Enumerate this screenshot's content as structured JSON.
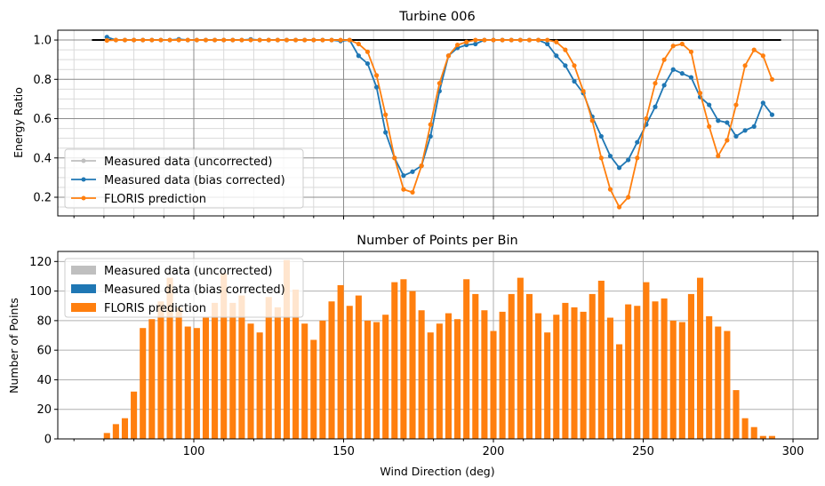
{
  "chart_data": [
    {
      "type": "line",
      "title": "Turbine 006",
      "xlabel": "",
      "ylabel": "Energy Ratio",
      "xlim": [
        54.6,
        308.3
      ],
      "ylim": [
        0.105,
        1.05
      ],
      "yticks": [
        0.2,
        0.4,
        0.6,
        0.8,
        1.0
      ],
      "ytick_labels": [
        "0.2",
        "0.4",
        "0.6",
        "0.8",
        "1.0"
      ],
      "grid": true,
      "legend_position": "lower-left",
      "reference_line": {
        "x": [
          66,
          296
        ],
        "y": 1.0,
        "color": "#000000"
      },
      "x": [
        71,
        74,
        77,
        80,
        83,
        86,
        89,
        92,
        95,
        98,
        101,
        104,
        107,
        110,
        113,
        116,
        119,
        122,
        125,
        128,
        131,
        134,
        137,
        140,
        143,
        146,
        149,
        152,
        155,
        158,
        161,
        164,
        167,
        170,
        173,
        176,
        179,
        182,
        185,
        188,
        191,
        194,
        197,
        200,
        203,
        206,
        209,
        212,
        215,
        218,
        221,
        224,
        227,
        230,
        233,
        236,
        239,
        242,
        245,
        248,
        251,
        254,
        257,
        260,
        263,
        266,
        269,
        272,
        275,
        278,
        281,
        284,
        287,
        290,
        293
      ],
      "series": [
        {
          "name": "Measured data (uncorrected)",
          "color": "#bfbfbf",
          "values": null
        },
        {
          "name": "Measured data (bias corrected)",
          "color": "#1f77b4",
          "values": [
            1.015,
            1.0,
            1.0,
            1.0,
            1.0,
            1.0,
            1.0,
            1.0,
            1.004,
            1.0,
            1.0,
            1.0,
            1.0,
            1.0,
            1.0,
            1.0,
            1.003,
            1.0,
            1.0,
            1.0,
            1.0,
            1.0,
            1.0,
            1.0,
            1.0,
            1.0,
            0.995,
            1.0,
            0.92,
            0.88,
            0.76,
            0.53,
            0.4,
            0.31,
            0.33,
            0.36,
            0.51,
            0.74,
            0.92,
            0.96,
            0.975,
            0.98,
            1.0,
            1.0,
            1.0,
            1.0,
            1.0,
            1.0,
            1.0,
            0.98,
            0.92,
            0.87,
            0.79,
            0.73,
            0.61,
            0.51,
            0.41,
            0.35,
            0.39,
            0.48,
            0.57,
            0.66,
            0.77,
            0.85,
            0.83,
            0.81,
            0.71,
            0.67,
            0.59,
            0.58,
            0.51,
            0.54,
            0.56,
            0.68,
            0.62
          ]
        },
        {
          "name": "FLORIS prediction",
          "color": "#ff7f0e",
          "values": [
            0.998,
            1.0,
            1.0,
            1.0,
            1.0,
            1.0,
            1.0,
            1.0,
            1.0,
            1.0,
            1.0,
            1.0,
            1.0,
            1.0,
            1.0,
            1.0,
            1.0,
            1.0,
            1.0,
            1.0,
            1.0,
            1.0,
            1.0,
            1.0,
            1.0,
            1.0,
            1.0,
            1.0,
            0.98,
            0.94,
            0.82,
            0.62,
            0.4,
            0.24,
            0.225,
            0.36,
            0.57,
            0.78,
            0.92,
            0.975,
            0.99,
            1.0,
            1.0,
            1.0,
            1.0,
            1.0,
            1.0,
            1.0,
            1.0,
            1.0,
            0.99,
            0.95,
            0.87,
            0.74,
            0.59,
            0.4,
            0.24,
            0.15,
            0.2,
            0.4,
            0.6,
            0.78,
            0.9,
            0.97,
            0.98,
            0.94,
            0.73,
            0.56,
            0.41,
            0.49,
            0.67,
            0.87,
            0.95,
            0.92,
            0.8
          ]
        }
      ]
    },
    {
      "type": "bar",
      "title": "Number of Points per Bin",
      "xlabel": "Wind Direction (deg)",
      "ylabel": "Number of Points",
      "xlim": [
        54.6,
        308.3
      ],
      "ylim": [
        0,
        126.8
      ],
      "xticks": [
        100,
        150,
        200,
        250,
        300
      ],
      "xtick_labels": [
        "100",
        "150",
        "200",
        "250",
        "300"
      ],
      "yticks": [
        0,
        20,
        40,
        60,
        80,
        100,
        120
      ],
      "ytick_labels": [
        "0",
        "20",
        "40",
        "60",
        "80",
        "100",
        "120"
      ],
      "grid": true,
      "legend_position": "upper-left",
      "x": [
        71,
        74,
        77,
        80,
        83,
        86,
        89,
        92,
        95,
        98,
        101,
        104,
        107,
        110,
        113,
        116,
        119,
        122,
        125,
        128,
        131,
        134,
        137,
        140,
        143,
        146,
        149,
        152,
        155,
        158,
        161,
        164,
        167,
        170,
        173,
        176,
        179,
        182,
        185,
        188,
        191,
        194,
        197,
        200,
        203,
        206,
        209,
        212,
        215,
        218,
        221,
        224,
        227,
        230,
        233,
        236,
        239,
        242,
        245,
        248,
        251,
        254,
        257,
        260,
        263,
        266,
        269,
        272,
        275,
        278,
        281,
        284,
        287,
        290,
        293
      ],
      "series": [
        {
          "name": "Measured data (uncorrected)",
          "color": "#bfbfbf",
          "values": null
        },
        {
          "name": "Measured data (bias corrected)",
          "color": "#1f77b4",
          "values": null
        },
        {
          "name": "FLORIS prediction",
          "color": "#ff7f0e",
          "values": [
            4,
            10,
            14,
            32,
            75,
            81,
            93,
            109,
            89,
            76,
            75,
            82,
            92,
            112,
            92,
            97,
            78,
            72,
            96,
            89,
            121,
            101,
            78,
            67,
            80,
            93,
            104,
            90,
            97,
            80,
            79,
            84,
            106,
            108,
            100,
            87,
            72,
            78,
            85,
            81,
            108,
            98,
            87,
            73,
            86,
            98,
            109,
            98,
            85,
            72,
            84,
            92,
            89,
            86,
            98,
            107,
            82,
            64,
            91,
            90,
            106,
            93,
            95,
            80,
            79,
            98,
            109,
            83,
            76,
            73,
            33,
            14,
            8,
            2,
            2
          ]
        }
      ]
    }
  ]
}
